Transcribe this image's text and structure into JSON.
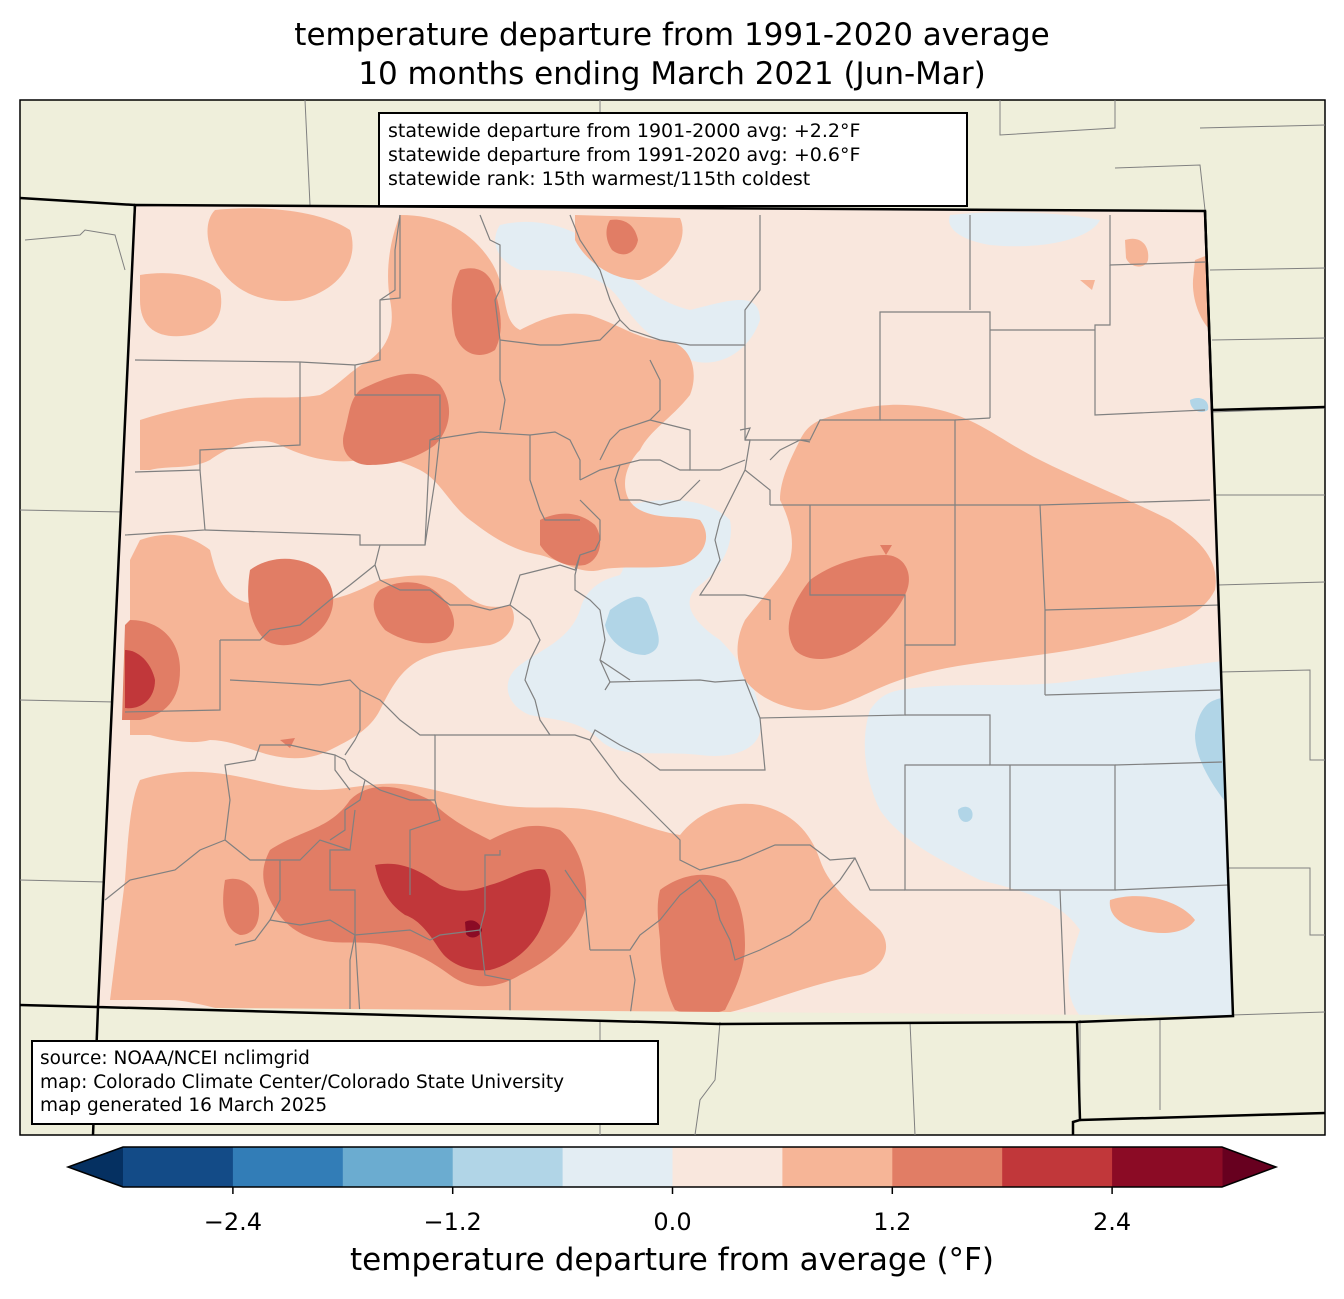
{
  "title": {
    "line1": "temperature departure from 1991-2020 average",
    "line2": "10 months ending March 2021 (Jun-Mar)"
  },
  "stats": {
    "line1": "statewide departure from 1901-2000 avg: +2.2°F",
    "line2": "statewide departure from 1991-2020 avg: +0.6°F",
    "line3": "statewide rank: 15th warmest/115th coldest"
  },
  "source": {
    "line1": "source: NOAA/NCEI nclimgrid",
    "line2": "map: Colorado Climate Center/Colorado State University",
    "line3": "map generated 16 March 2025"
  },
  "colorbar": {
    "label": "temperature departure from average (°F)",
    "ticks": [
      "−2.4",
      "−1.2",
      "0.0",
      "1.2",
      "2.4"
    ],
    "tick_values": [
      -2.4,
      -1.2,
      0.0,
      1.2,
      2.4
    ],
    "range": [
      -3.0,
      3.0
    ],
    "step": 0.6,
    "colors": [
      "#053061",
      "#134b87",
      "#327db7",
      "#6bacd0",
      "#b1d5e7",
      "#e3edf3",
      "#f9e7dd",
      "#f6b597",
      "#e17d65",
      "#c1373a",
      "#8b0b25",
      "#67001f"
    ]
  },
  "colors": {
    "neighbor_land": "#efefdb",
    "state_border": "#000000",
    "county_lines": "#808080",
    "base_fill": "#f9e7dd"
  }
}
